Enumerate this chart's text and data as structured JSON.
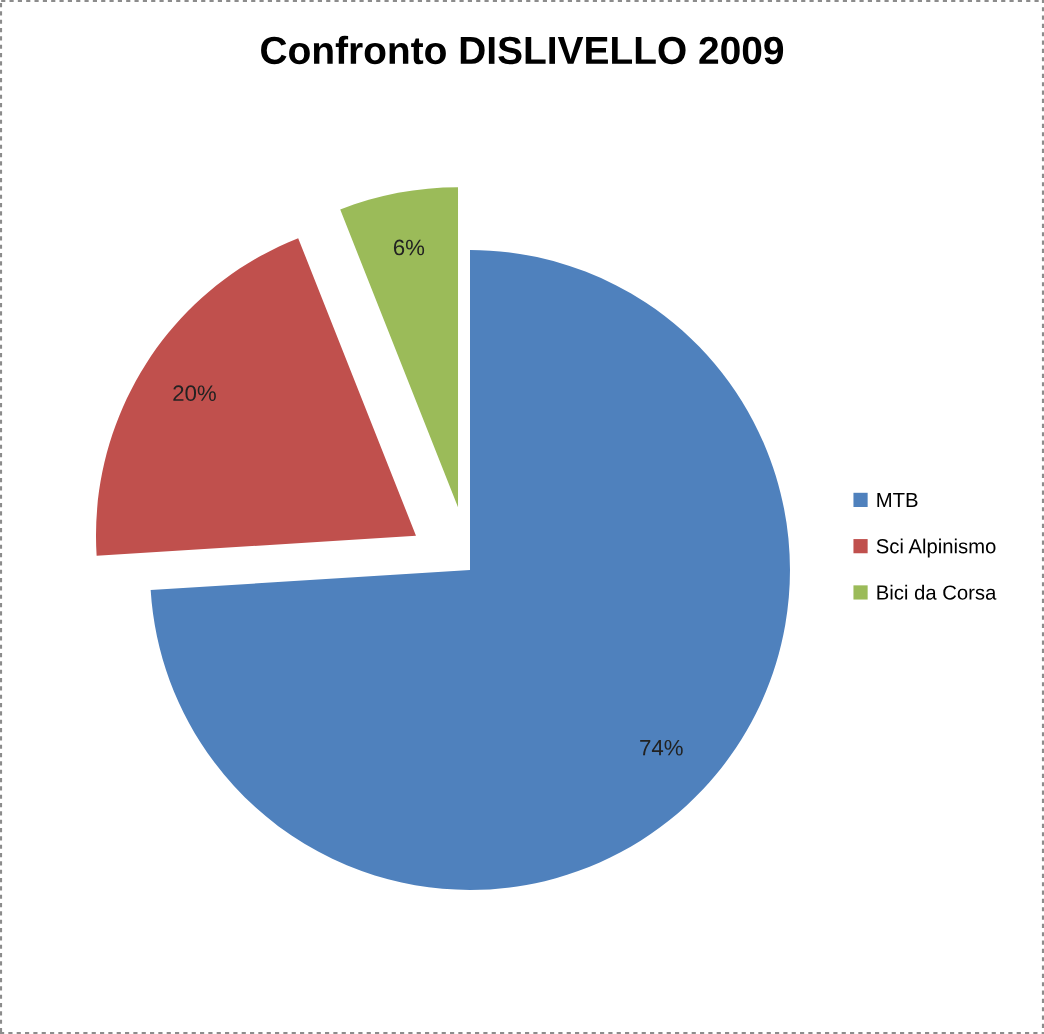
{
  "chart_data": {
    "type": "pie",
    "title": "Confronto DISLIVELLO 2009",
    "categories": [
      "MTB",
      "Sci Alpinismo",
      "Bici da Corsa"
    ],
    "values": [
      74,
      20,
      6
    ],
    "colors": [
      "#4f81bd",
      "#c0504d",
      "#9bbb59"
    ],
    "value_labels": [
      "74%",
      "20%",
      "6%"
    ],
    "legend": "right"
  }
}
